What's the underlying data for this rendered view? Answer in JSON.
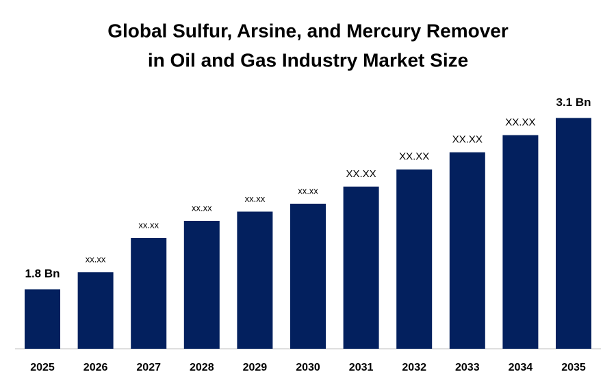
{
  "chart_data": {
    "type": "bar",
    "title": [
      "Global Sulfur, Arsine, and Mercury Remover",
      "in Oil and Gas Industry Market Size"
    ],
    "categories": [
      "2025",
      "2026",
      "2027",
      "2028",
      "2029",
      "2030",
      "2031",
      "2032",
      "2033",
      "2034",
      "2035"
    ],
    "values": [
      1.8,
      1.93,
      2.19,
      2.32,
      2.39,
      2.45,
      2.58,
      2.71,
      2.84,
      2.97,
      3.1
    ],
    "value_labels": [
      "1.8 Bn",
      "xx.xx",
      "xx.xx",
      "xx.xx",
      "xx.xx",
      "xx.xx",
      "XX.XX",
      "XX.XX",
      "XX.XX",
      "XX.XX",
      "3.1 Bn"
    ],
    "color": "#03205e",
    "ylim": [
      1.35,
      3.3
    ]
  }
}
